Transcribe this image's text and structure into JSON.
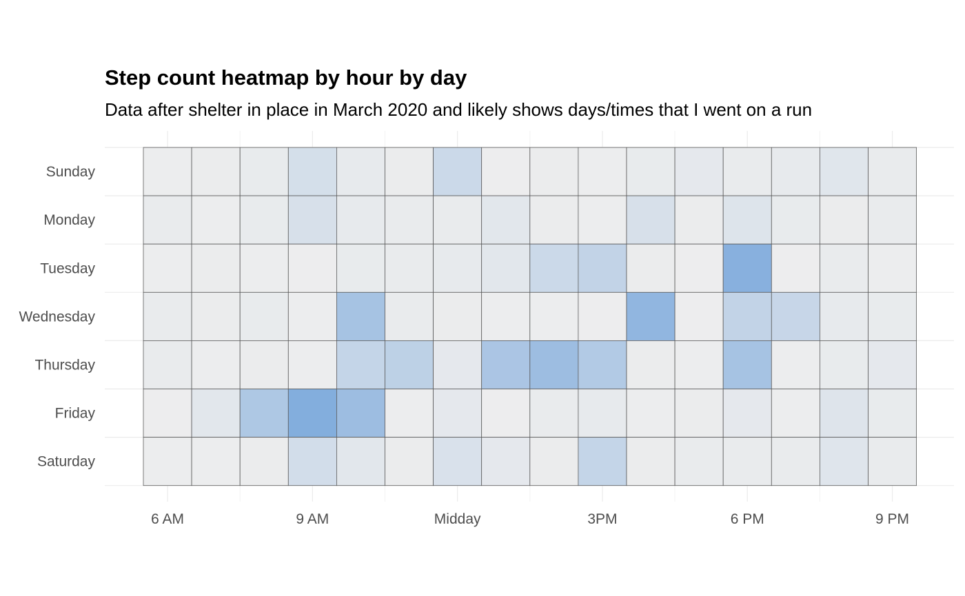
{
  "chart_data": {
    "type": "heatmap",
    "title": "Step count heatmap by hour by day",
    "subtitle": "Data after shelter in place in March 2020 and likely shows days/times that I went on a run",
    "xlabel": "",
    "ylabel": "",
    "x_hours": [
      6,
      7,
      8,
      9,
      10,
      11,
      12,
      13,
      14,
      15,
      16,
      17,
      18,
      19,
      20,
      21
    ],
    "x_ticks": [
      {
        "hour": 6,
        "label": "6 AM"
      },
      {
        "hour": 9,
        "label": "9 AM"
      },
      {
        "hour": 12,
        "label": "Midday"
      },
      {
        "hour": 15,
        "label": "3PM"
      },
      {
        "hour": 18,
        "label": "6 PM"
      },
      {
        "hour": 21,
        "label": "9 PM"
      }
    ],
    "days": [
      "Sunday",
      "Monday",
      "Tuesday",
      "Wednesday",
      "Thursday",
      "Friday",
      "Saturday"
    ],
    "value_scale": [
      0,
      1
    ],
    "color_low": "#eeeeee",
    "color_high": "#7aa8dc",
    "values": [
      [
        0.02,
        0.03,
        0.05,
        0.22,
        0.06,
        0.03,
        0.3,
        0.01,
        0.03,
        0.02,
        0.05,
        0.08,
        0.04,
        0.06,
        0.12,
        0.04
      ],
      [
        0.04,
        0.02,
        0.05,
        0.2,
        0.06,
        0.04,
        0.04,
        0.1,
        0.03,
        0.02,
        0.2,
        0.03,
        0.15,
        0.05,
        0.03,
        0.04
      ],
      [
        0.02,
        0.03,
        0.02,
        0.01,
        0.05,
        0.04,
        0.06,
        0.1,
        0.3,
        0.38,
        0.03,
        0.01,
        0.88,
        0.01,
        0.04,
        0.02
      ],
      [
        0.04,
        0.03,
        0.05,
        0.02,
        0.62,
        0.04,
        0.03,
        0.02,
        0.02,
        0.01,
        0.8,
        0.01,
        0.38,
        0.34,
        0.06,
        0.05
      ],
      [
        0.04,
        0.02,
        0.03,
        0.02,
        0.36,
        0.42,
        0.08,
        0.58,
        0.7,
        0.52,
        0.03,
        0.02,
        0.62,
        0.02,
        0.05,
        0.08
      ],
      [
        0.01,
        0.1,
        0.55,
        0.92,
        0.7,
        0.02,
        0.08,
        0.01,
        0.04,
        0.06,
        0.02,
        0.03,
        0.08,
        0.02,
        0.14,
        0.05
      ],
      [
        0.02,
        0.02,
        0.03,
        0.24,
        0.1,
        0.03,
        0.18,
        0.08,
        0.03,
        0.36,
        0.03,
        0.04,
        0.04,
        0.04,
        0.13,
        0.04
      ]
    ],
    "grid": true,
    "legend": "none"
  }
}
